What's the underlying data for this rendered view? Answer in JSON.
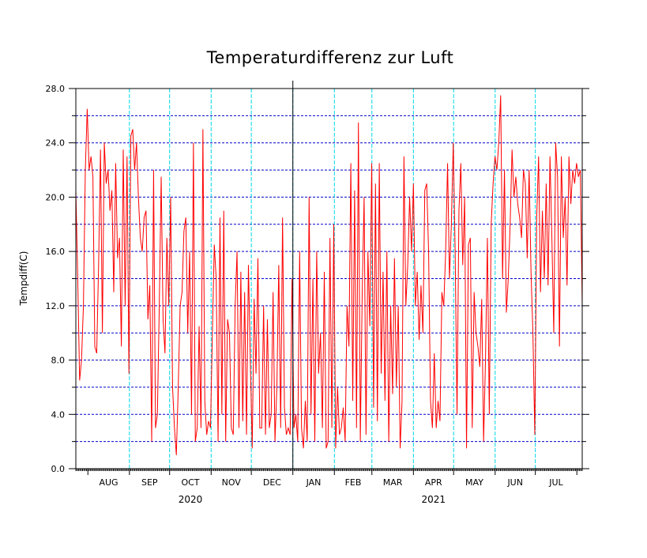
{
  "chart_data": {
    "type": "line",
    "title": "Temperaturdifferenz zur Luft",
    "xlabel": "",
    "ylabel": "Tempdiff(C)",
    "ylim": [
      0,
      28
    ],
    "y_ticks": [
      "0.0",
      "4.0",
      "8.0",
      "12.0",
      "16.0",
      "20.0",
      "24.0",
      "28.0"
    ],
    "months": [
      "AUG",
      "SEP",
      "OCT",
      "NOV",
      "DEC",
      "JAN",
      "FEB",
      "MAR",
      "APR",
      "MAY",
      "JUN",
      "JUL"
    ],
    "years": [
      {
        "label": "2020",
        "month_index": 2
      },
      {
        "label": "2021",
        "month_index": 8
      }
    ],
    "x_start": "2020-07-23",
    "x_end": "2021-08-05",
    "grid": "dashed horizontal at every 2.0; cyan vertical at month boundaries",
    "colors": {
      "line": "#ff0000",
      "hgrid": "#0000c8",
      "vgrid": "#00d8e8",
      "axis": "#000000"
    },
    "series": [
      {
        "values": [
          20.5,
          14.0,
          6.5,
          8.0,
          12.0,
          22.0,
          26.5,
          22.0,
          23.0,
          21.5,
          9.0,
          8.5,
          15.0,
          23.5,
          10.0,
          24.0,
          21.0,
          22.0,
          19.0,
          20.5,
          13.0,
          22.5,
          15.5,
          17.0,
          9.0,
          23.5,
          12.0,
          23.0,
          7.0,
          24.5,
          25.0,
          22.0,
          24.0,
          20.0,
          17.0,
          16.0,
          18.5,
          19.0,
          11.0,
          13.5,
          2.0,
          22.0,
          3.0,
          4.0,
          12.0,
          21.5,
          11.0,
          8.5,
          17.0,
          12.0,
          20.0,
          6.0,
          3.0,
          1.0,
          6.0,
          12.0,
          13.0,
          17.5,
          18.5,
          10.0,
          16.0,
          4.0,
          24.0,
          2.0,
          3.0,
          10.5,
          3.0,
          25.0,
          5.0,
          2.5,
          3.5,
          3.0,
          10.0,
          16.5,
          14.0,
          2.0,
          18.5,
          4.0,
          19.0,
          2.0,
          11.0,
          10.0,
          3.0,
          2.5,
          12.0,
          16.0,
          3.0,
          14.5,
          3.5,
          13.0,
          2.5,
          15.0,
          8.0,
          1.5,
          12.5,
          7.0,
          15.5,
          3.0,
          3.0,
          12.0,
          2.5,
          11.0,
          3.0,
          4.0,
          13.0,
          2.0,
          6.0,
          15.0,
          3.0,
          18.5,
          4.5,
          2.5,
          3.0,
          2.5,
          14.0,
          3.0,
          4.0,
          2.0,
          16.0,
          3.0,
          1.5,
          5.0,
          2.0,
          20.0,
          4.0,
          14.0,
          2.0,
          16.0,
          7.0,
          10.0,
          3.0,
          14.5,
          1.5,
          2.0,
          17.0,
          3.0,
          18.0,
          1.5,
          6.0,
          2.5,
          3.0,
          4.5,
          2.0,
          12.0,
          9.0,
          22.5,
          5.0,
          20.5,
          3.0,
          25.5,
          2.0,
          13.0,
          20.0,
          2.5,
          16.0,
          10.5,
          22.5,
          4.5,
          21.0,
          3.5,
          22.5,
          7.0,
          14.5,
          5.0,
          16.0,
          2.0,
          12.0,
          5.5,
          15.5,
          6.0,
          12.0,
          1.5,
          5.0,
          23.0,
          12.0,
          15.0,
          20.0,
          16.0,
          21.0,
          12.0,
          14.5,
          9.5,
          13.5,
          10.0,
          20.5,
          21.0,
          16.0,
          5.0,
          3.0,
          8.5,
          3.0,
          5.0,
          3.5,
          13.0,
          12.0,
          16.0,
          22.5,
          14.0,
          18.0,
          24.0,
          16.0,
          4.0,
          19.0,
          22.5,
          15.0,
          20.0,
          1.5,
          16.5,
          17.0,
          3.0,
          13.0,
          10.0,
          9.0,
          7.5,
          12.5,
          2.0,
          8.0,
          17.0,
          4.0,
          18.0,
          21.0,
          23.0,
          22.0,
          24.0,
          27.5,
          14.0,
          22.0,
          11.5,
          14.0,
          18.0,
          23.5,
          20.0,
          21.5,
          19.5,
          18.5,
          17.0,
          22.0,
          21.0,
          15.5,
          22.0,
          14.5,
          10.0,
          2.5,
          18.5,
          23.0,
          13.0,
          19.0,
          14.0,
          21.0,
          13.5,
          23.0,
          17.0,
          10.0,
          24.0,
          21.5,
          9.0,
          23.0,
          17.0,
          20.0,
          13.5,
          23.0,
          19.5,
          22.0,
          21.0,
          22.5,
          21.5,
          22.0,
          12.0
        ]
      }
    ]
  }
}
